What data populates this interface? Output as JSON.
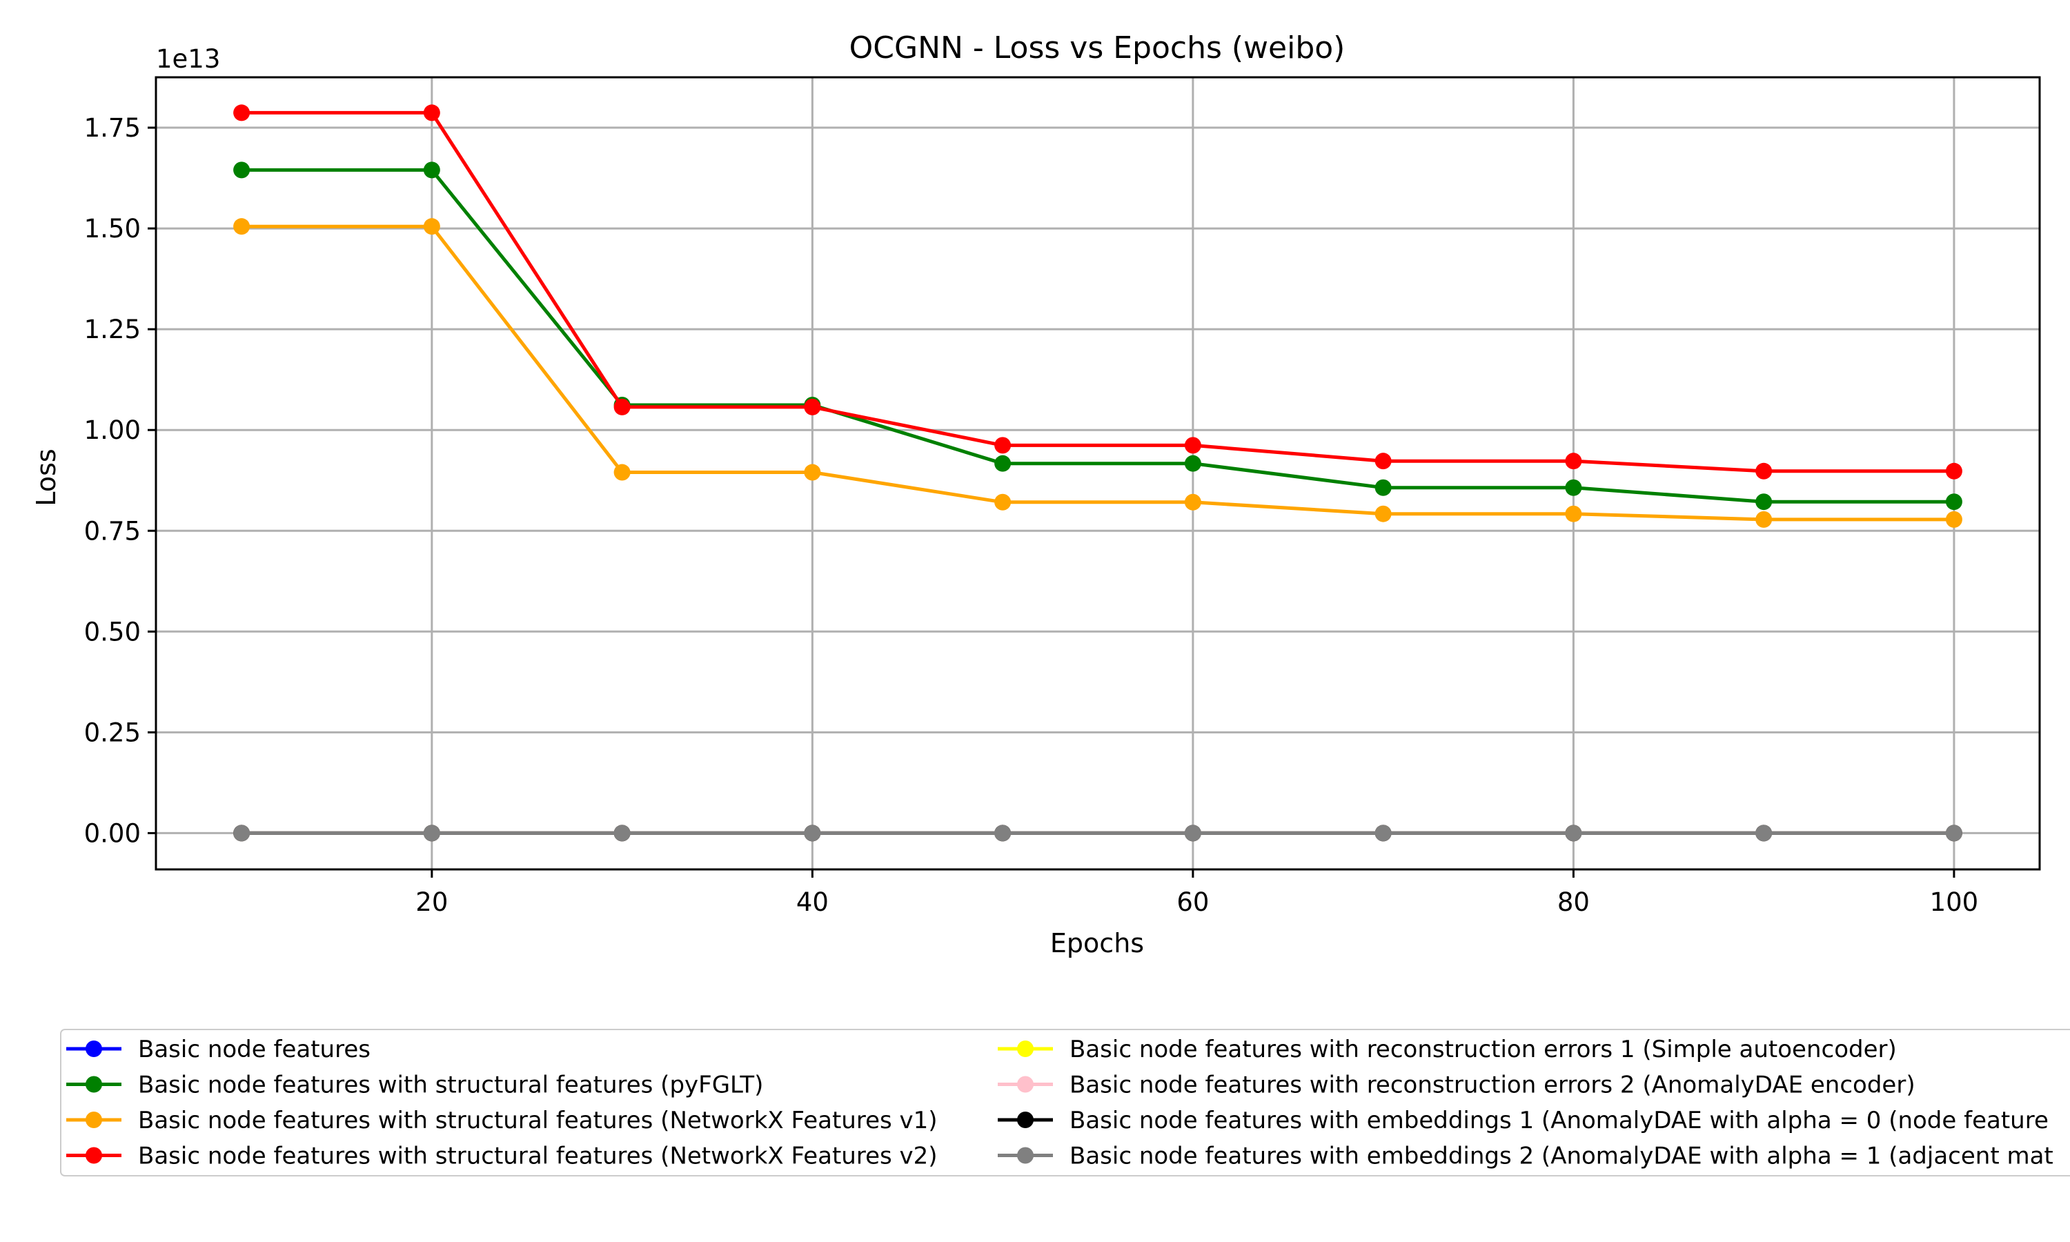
{
  "chart_data": {
    "type": "line",
    "title": "OCGNN - Loss vs Epochs (weibo)",
    "xlabel": "Epochs",
    "ylabel": "Loss",
    "y_offset_label": "1e13",
    "y_multiplier": 10000000000000.0,
    "xlim": [
      5.5,
      104.5
    ],
    "ylim": [
      -0.09,
      1.875
    ],
    "grid": true,
    "legend_placement": "below chart, two columns",
    "x": [
      10,
      20,
      30,
      40,
      50,
      60,
      70,
      80,
      90,
      100
    ],
    "x_ticks": [
      20,
      40,
      60,
      80,
      100
    ],
    "y_ticks": [
      0,
      0.25,
      0.5,
      0.75,
      1.0,
      1.25,
      1.5,
      1.75
    ],
    "y_tick_labels": [
      "0.00",
      "0.25",
      "0.50",
      "0.75",
      "1.00",
      "1.25",
      "1.50",
      "1.75"
    ],
    "series": [
      {
        "name": "Basic node features",
        "color": "#0000ff",
        "values": [
          0,
          0,
          0,
          0,
          0,
          0,
          0,
          0,
          0,
          0
        ]
      },
      {
        "name": "Basic node features with structural features (pyFGLT)",
        "color": "#008000",
        "values": [
          1.645,
          1.645,
          1.062,
          1.062,
          0.917,
          0.917,
          0.857,
          0.857,
          0.822,
          0.822
        ]
      },
      {
        "name": "Basic node features with structural features (NetworkX Features v1)",
        "color": "#ffa500",
        "values": [
          1.505,
          1.505,
          0.895,
          0.895,
          0.821,
          0.821,
          0.792,
          0.792,
          0.778,
          0.778
        ]
      },
      {
        "name": "Basic node features with structural features (NetworkX Features v2)",
        "color": "#ff0000",
        "values": [
          1.787,
          1.787,
          1.057,
          1.057,
          0.962,
          0.962,
          0.923,
          0.923,
          0.898,
          0.898
        ]
      },
      {
        "name": "Basic node features with reconstruction errors 1 (Simple autoencoder)",
        "color": "#ffff00",
        "values": [
          0,
          0,
          0,
          0,
          0,
          0,
          0,
          0,
          0,
          0
        ]
      },
      {
        "name": "Basic node features with reconstruction errors 2 (AnomalyDAE encoder)",
        "color": "#ffc0cb",
        "values": [
          0,
          0,
          0,
          0,
          0,
          0,
          0,
          0,
          0,
          0
        ]
      },
      {
        "name": "Basic node features with embeddings 1 (AnomalyDAE with alpha = 0 (node feature",
        "color": "#000000",
        "values": [
          0,
          0,
          0,
          0,
          0,
          0,
          0,
          0,
          0,
          0
        ]
      },
      {
        "name": "Basic node features with embeddings 2 (AnomalyDAE with alpha = 1 (adjacent mat",
        "color": "#808080",
        "values": [
          0,
          0,
          0,
          0,
          0,
          0,
          0,
          0,
          0,
          0
        ]
      }
    ]
  }
}
